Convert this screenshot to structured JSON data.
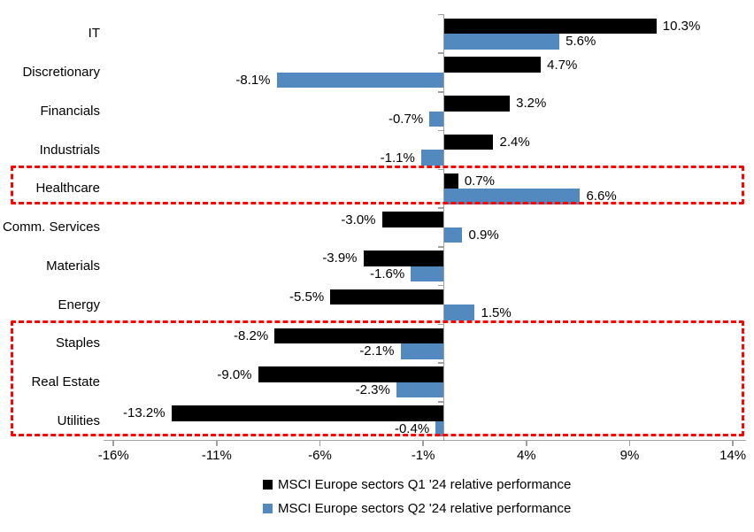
{
  "chart_data": {
    "type": "bar",
    "orientation": "horizontal",
    "title": "",
    "categories": [
      "IT",
      "Discretionary",
      "Financials",
      "Industrials",
      "Healthcare",
      "Comm. Services",
      "Materials",
      "Energy",
      "Staples",
      "Real Estate",
      "Utilities"
    ],
    "series": [
      {
        "name": "MSCI Europe sectors Q1 '24 relative performance",
        "color": "#000000",
        "values": [
          10.3,
          4.7,
          3.2,
          2.4,
          0.7,
          -3.0,
          -3.9,
          -5.5,
          -8.2,
          -9.0,
          -13.2
        ]
      },
      {
        "name": "MSCI Europe sectors Q2 '24 relative performance",
        "color": "#5289be",
        "values": [
          5.6,
          -8.1,
          -0.7,
          -1.1,
          6.6,
          0.9,
          -1.6,
          1.5,
          -2.1,
          -2.3,
          -0.4
        ]
      }
    ],
    "value_label_suffix": "%",
    "value_label_decimals": 1,
    "x_axis": {
      "ticks": [
        -16,
        -11,
        -6,
        -1,
        4,
        9,
        14
      ],
      "tick_suffix": "%",
      "min": -16.5,
      "max": 14.6
    },
    "grid": false,
    "legend": {
      "position": "bottom-center",
      "entries": [
        "MSCI Europe sectors Q1 '24 relative performance",
        "MSCI Europe sectors Q2 '24 relative performance"
      ]
    },
    "annotations": [
      {
        "type": "highlight_box",
        "style": "dashed",
        "color": "#fb0404",
        "row_start": 4,
        "row_end": 4,
        "sectors": [
          "Healthcare"
        ]
      },
      {
        "type": "highlight_box",
        "style": "dashed",
        "color": "#fb0404",
        "row_start": 8,
        "row_end": 10,
        "sectors": [
          "Staples",
          "Real Estate",
          "Utilities"
        ]
      }
    ]
  }
}
